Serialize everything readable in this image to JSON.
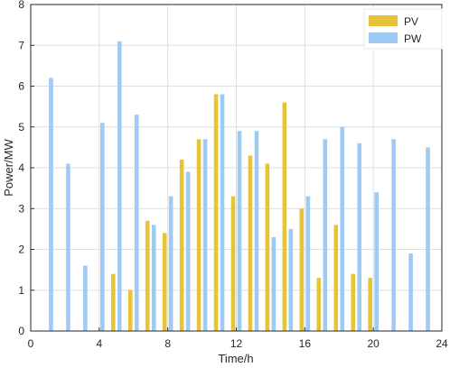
{
  "chart_data": {
    "type": "bar",
    "xlabel": "Time/h",
    "ylabel": "Power/MW",
    "xlim": [
      0,
      24
    ],
    "ylim": [
      0,
      8
    ],
    "xticks": [
      0,
      4,
      8,
      12,
      16,
      20,
      24
    ],
    "yticks": [
      0,
      1,
      2,
      3,
      4,
      5,
      6,
      7,
      8
    ],
    "grid": true,
    "legend_position": "top-right",
    "series": [
      {
        "name": "PV",
        "color": "#e6c435",
        "x": [
          5,
          6,
          7,
          8,
          9,
          10,
          11,
          12,
          13,
          14,
          15,
          16,
          17,
          18,
          19,
          20
        ],
        "values": [
          1.4,
          1.0,
          2.7,
          2.4,
          4.2,
          4.7,
          5.8,
          3.3,
          4.3,
          4.1,
          5.6,
          3.0,
          1.3,
          2.6,
          1.4,
          1.3
        ]
      },
      {
        "name": "PW",
        "color": "#9ecaf4",
        "x": [
          1,
          2,
          3,
          4,
          5,
          6,
          7,
          8,
          9,
          10,
          11,
          12,
          13,
          14,
          15,
          16,
          17,
          18,
          19,
          20,
          21,
          22,
          23
        ],
        "values": [
          6.2,
          4.1,
          1.6,
          5.1,
          7.1,
          5.3,
          2.6,
          3.3,
          3.9,
          4.7,
          5.8,
          4.9,
          4.9,
          2.3,
          2.5,
          3.3,
          4.7,
          5.0,
          4.6,
          3.4,
          4.7,
          1.9,
          4.5
        ]
      }
    ]
  }
}
